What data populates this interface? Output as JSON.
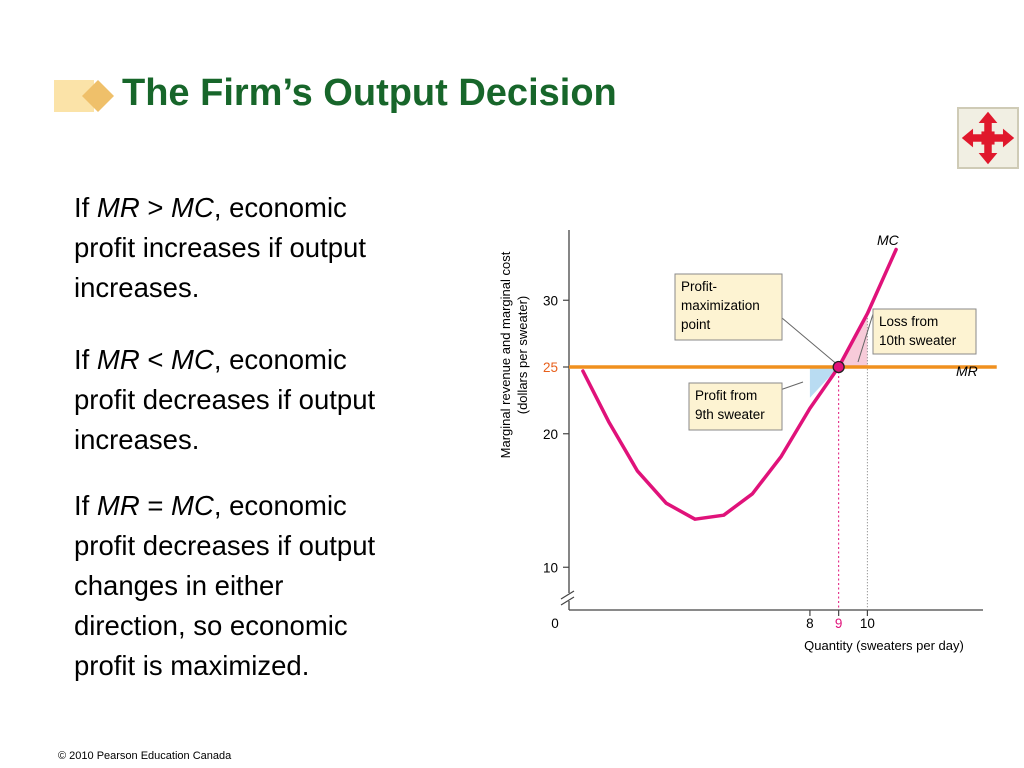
{
  "slide": {
    "title": "The Firm’s Output Decision",
    "footer": "© 2010 Pearson Education Canada",
    "nav_icon": "four-way-arrows-icon",
    "colors": {
      "title": "#17662a",
      "mc": "#e0127a",
      "mr": "#f0901e",
      "profit_area": "#b9dcf2",
      "loss_area": "#f7cbd9",
      "label_box": "#fdf3d2"
    }
  },
  "paragraphs": [
    {
      "prefix": "If ",
      "lhs": "MR",
      "op": " > ",
      "rhs": "MC",
      "suffix": ", economic",
      "lines": [
        "profit increases if output",
        "increases."
      ]
    },
    {
      "prefix": "If ",
      "lhs": "MR",
      "op": " < ",
      "rhs": "MC",
      "suffix": ", economic",
      "lines": [
        "profit decreases if output",
        "increases."
      ]
    },
    {
      "prefix": "If ",
      "lhs": "MR",
      "op": " = ",
      "rhs": "MC",
      "suffix": ", economic",
      "lines": [
        "profit decreases if output",
        "changes in either",
        "direction, so economic",
        "profit is maximized."
      ]
    }
  ],
  "chart_data": {
    "type": "line",
    "xlabel": "Quantity (sweaters per day)",
    "ylabel_lines": [
      "Marginal revenue and marginal cost",
      "(dollars per sweater)"
    ],
    "origin_label": "0",
    "x_ticks": [
      "8",
      "9",
      "10"
    ],
    "y_ticks": [
      "10",
      "20",
      "25",
      "30"
    ],
    "highlight_tick_color": "#e0127a",
    "highlight_y_tick_color": "#e8601c",
    "xlim": [
      0,
      15
    ],
    "ylim": [
      8,
      35
    ],
    "y_axis_break": true,
    "series": [
      {
        "name": "MC",
        "color": "#e0127a",
        "x": [
          0.1,
          1,
          2,
          3,
          4,
          5,
          6,
          7,
          8,
          9,
          10,
          11
        ],
        "y": [
          24.7,
          20.9,
          17.2,
          14.8,
          13.6,
          13.9,
          15.5,
          18.3,
          21.9,
          25,
          29,
          33.8
        ]
      },
      {
        "name": "MR",
        "color": "#f0901e",
        "x": [
          0,
          14.5
        ],
        "y": [
          25,
          25
        ]
      }
    ],
    "shaded_regions": [
      {
        "x_from": 8,
        "x_to": 9,
        "y_from": 22.7,
        "y_to": 25,
        "color": "#b9dcf2"
      },
      {
        "x_from": 9,
        "x_to": 10,
        "y_from": 25,
        "y_to": 29.1,
        "color": "#f7cbd9"
      }
    ],
    "point": {
      "x": 9,
      "y": 25
    },
    "annotations": [
      {
        "lines": [
          "Profit-",
          "maximization",
          "point"
        ]
      },
      {
        "lines": [
          "Loss from",
          "10th sweater"
        ]
      },
      {
        "lines": [
          "Profit from",
          "9th sweater"
        ]
      }
    ]
  }
}
